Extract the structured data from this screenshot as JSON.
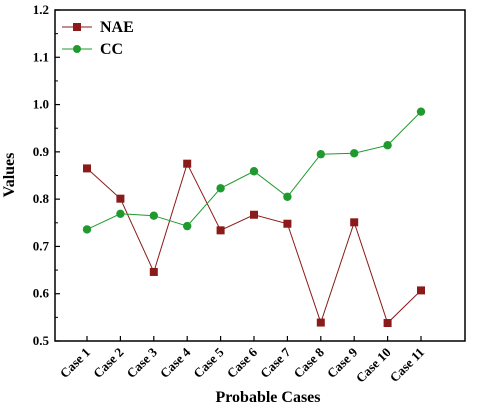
{
  "chart_data": {
    "type": "line",
    "categories": [
      "Case 1",
      "Case 2",
      "Case 3",
      "Case 4",
      "Case 5",
      "Case 6",
      "Case 7",
      "Case 8",
      "Case 9",
      "Case 10",
      "Case 11"
    ],
    "series": [
      {
        "name": "NAE",
        "color": "#8b1a1a",
        "marker": "square",
        "values": [
          0.865,
          0.801,
          0.646,
          0.875,
          0.734,
          0.767,
          0.748,
          0.539,
          0.751,
          0.538,
          0.607
        ]
      },
      {
        "name": "CC",
        "color": "#1f9a2e",
        "marker": "circle",
        "values": [
          0.736,
          0.769,
          0.765,
          0.743,
          0.823,
          0.859,
          0.805,
          0.895,
          0.897,
          0.914,
          0.985
        ]
      }
    ],
    "xlabel": "Probable Cases",
    "ylabel": "Values",
    "ylim": [
      0.5,
      1.2
    ],
    "yticks": [
      0.5,
      0.6,
      0.7,
      0.8,
      0.9,
      1.0,
      1.1,
      1.2
    ],
    "ytick_labels": [
      "0.5",
      "0.6",
      "0.7",
      "0.8",
      "0.9",
      "1.0",
      "1.1",
      "1.2"
    ],
    "grid": false,
    "legend_position": "top-left"
  }
}
